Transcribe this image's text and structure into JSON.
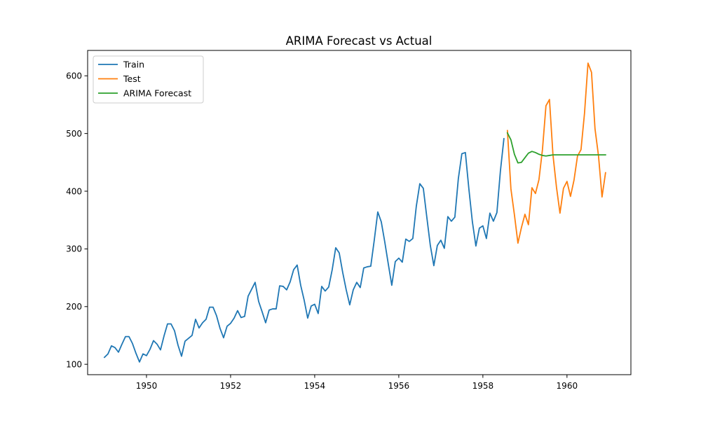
{
  "chart_data": {
    "type": "line",
    "title": "ARIMA Forecast vs Actual",
    "xlabel": "",
    "ylabel": "",
    "xlim": [
      1948.6,
      1961.52
    ],
    "ylim": [
      82,
      644
    ],
    "xticks": [
      1950,
      1952,
      1954,
      1956,
      1958,
      1960
    ],
    "xtick_labels": [
      "1950",
      "1952",
      "1954",
      "1956",
      "1958",
      "1960"
    ],
    "yticks": [
      100,
      200,
      300,
      400,
      500,
      600
    ],
    "ytick_labels": [
      "100",
      "200",
      "300",
      "400",
      "500",
      "600"
    ],
    "grid": false,
    "legend_position": "top-left",
    "series": [
      {
        "name": "Train",
        "color": "#1f77b4",
        "x_start": 1949.0,
        "x_step": 0.0833333,
        "values": [
          112,
          118,
          132,
          129,
          121,
          135,
          148,
          148,
          136,
          119,
          104,
          118,
          115,
          126,
          141,
          135,
          125,
          149,
          170,
          170,
          158,
          133,
          114,
          140,
          145,
          150,
          178,
          163,
          172,
          178,
          199,
          199,
          184,
          162,
          146,
          166,
          171,
          180,
          193,
          181,
          183,
          218,
          230,
          242,
          209,
          191,
          172,
          194,
          196,
          196,
          236,
          235,
          229,
          243,
          264,
          272,
          237,
          211,
          180,
          201,
          204,
          188,
          235,
          227,
          234,
          264,
          302,
          293,
          259,
          229,
          203,
          229,
          242,
          233,
          267,
          269,
          270,
          315,
          364,
          347,
          312,
          274,
          237,
          278,
          284,
          277,
          317,
          313,
          318,
          374,
          413,
          405,
          355,
          306,
          271,
          306,
          315,
          301,
          356,
          348,
          355,
          422,
          465,
          467,
          404,
          347,
          305,
          336,
          340,
          318,
          362,
          348,
          363,
          435,
          491
        ]
      },
      {
        "name": "Test",
        "color": "#ff7f0e",
        "x_start": 1958.5833,
        "x_step": 0.0833333,
        "values": [
          505,
          404,
          359,
          310,
          337,
          360,
          342,
          406,
          396,
          420,
          472,
          548,
          559,
          463,
          407,
          362,
          405,
          417,
          391,
          419,
          461,
          472,
          535,
          622,
          606,
          508,
          461,
          390,
          432
        ]
      },
      {
        "name": "ARIMA Forecast",
        "color": "#2ca02c",
        "x_start": 1958.5833,
        "x_step": 0.0833333,
        "values": [
          501,
          489,
          464,
          449,
          450,
          458,
          466,
          469,
          467,
          464,
          462,
          461,
          462,
          463,
          463,
          463,
          463,
          463,
          463,
          463,
          463,
          463,
          463,
          463,
          463,
          463,
          463,
          463,
          463
        ]
      }
    ]
  }
}
